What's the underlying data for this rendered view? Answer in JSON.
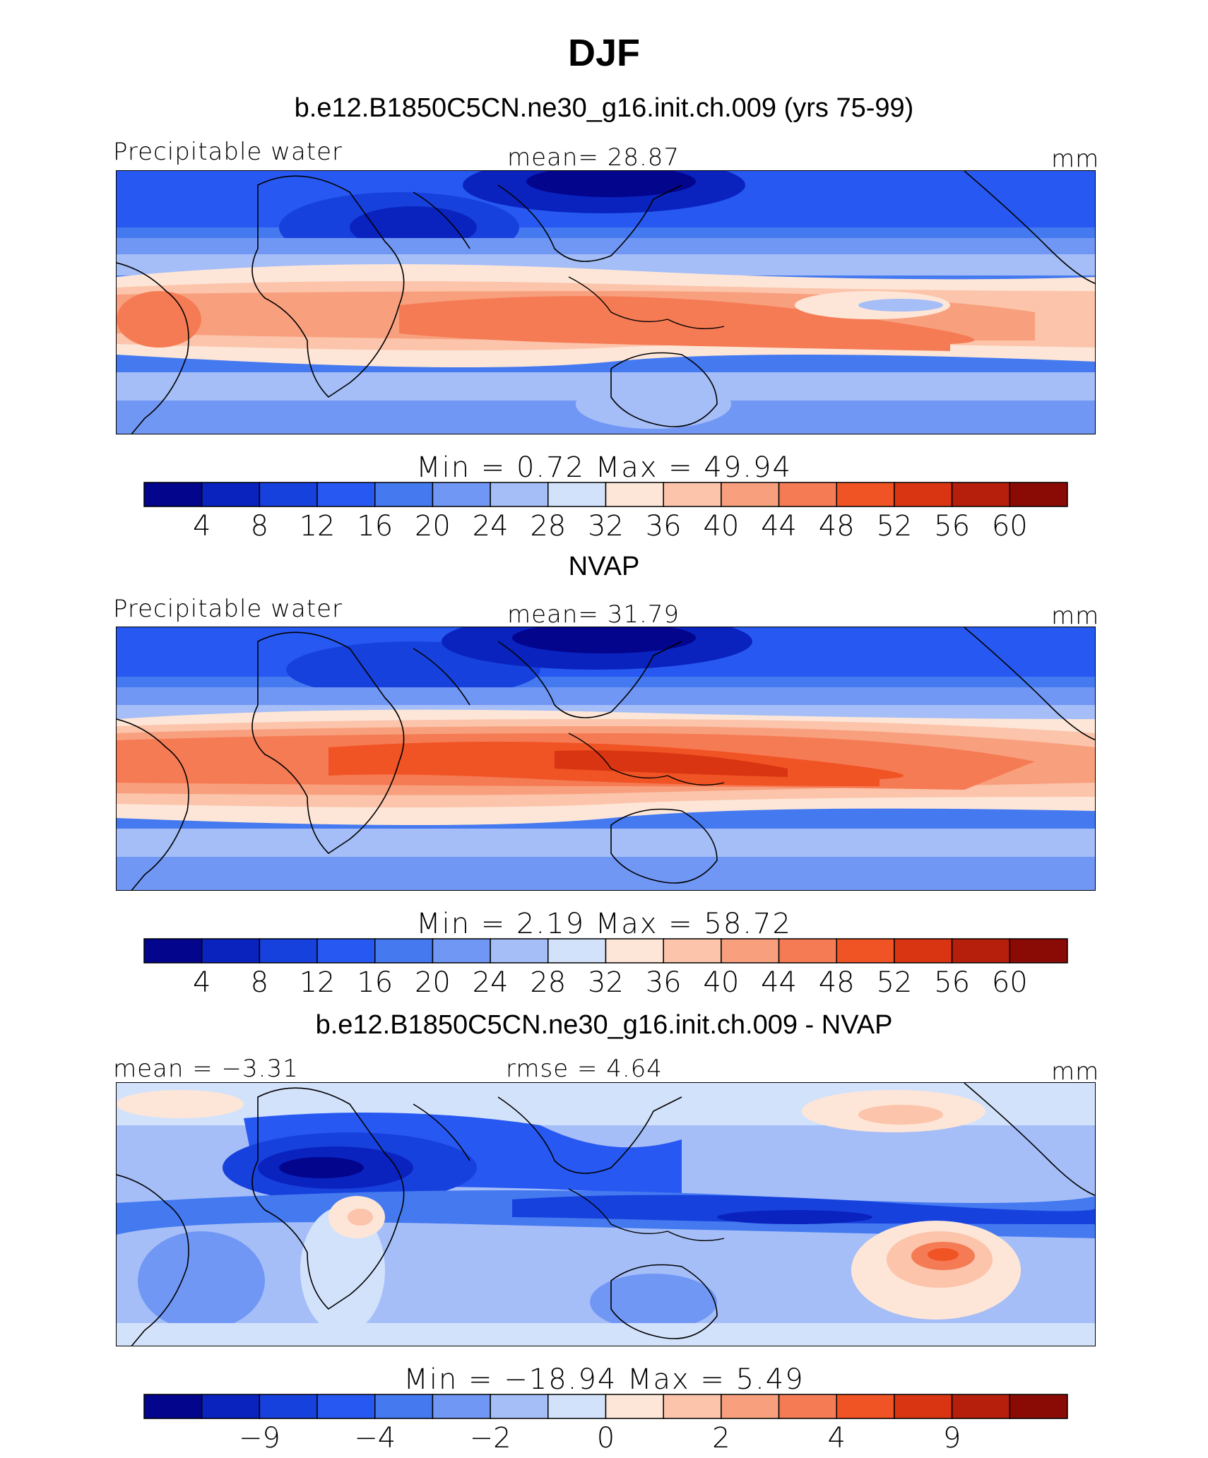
{
  "page": {
    "title": "DJF"
  },
  "colors": {
    "palette": [
      "#03058c",
      "#0a23bf",
      "#1741dd",
      "#2759f2",
      "#4479f0",
      "#7197f5",
      "#a5bef8",
      "#d3e2fb",
      "#fde6d7",
      "#fbc4ab",
      "#f8a07e",
      "#f57b54",
      "#f05324",
      "#d93512",
      "#b51f0c",
      "#8a0a05"
    ]
  },
  "chart_data": [
    {
      "type": "heatmap",
      "subtitle": "b.e12.B1850C5CN.ne30_g16.init.ch.009 (yrs 75-99)",
      "left_label": "Precipitable water",
      "center_label": "mean=   28.87",
      "units": "mm",
      "mean": 28.87,
      "min": 0.72,
      "max": 49.94,
      "minmax_text": "Min  =     0.72  Max  =    49.94",
      "colorbar_levels": [
        "4",
        "8",
        "12",
        "16",
        "20",
        "24",
        "28",
        "32",
        "36",
        "40",
        "44",
        "48",
        "52",
        "56",
        "60"
      ]
    },
    {
      "type": "heatmap",
      "subtitle": "NVAP",
      "left_label": "Precipitable water",
      "center_label": "mean=   31.79",
      "units": "mm",
      "mean": 31.79,
      "min": 2.19,
      "max": 58.72,
      "minmax_text": "Min  =     2.19  Max  =    58.72",
      "colorbar_levels": [
        "4",
        "8",
        "12",
        "16",
        "20",
        "24",
        "28",
        "32",
        "36",
        "40",
        "44",
        "48",
        "52",
        "56",
        "60"
      ]
    },
    {
      "type": "heatmap",
      "subtitle": "b.e12.B1850C5CN.ne30_g16.init.ch.009 - NVAP",
      "left_label": "mean =  −3.31",
      "center_label": "rmse =     4.64",
      "units": "mm",
      "mean": -3.31,
      "rmse": 4.64,
      "min": -18.94,
      "max": 5.49,
      "minmax_text": "Min  = −18.94  Max  =     5.49",
      "colorbar_levels": [
        "",
        "−9",
        "",
        "−4",
        "",
        "−2",
        "",
        "0",
        "",
        "2",
        "",
        "4",
        "",
        "9",
        ""
      ]
    }
  ]
}
